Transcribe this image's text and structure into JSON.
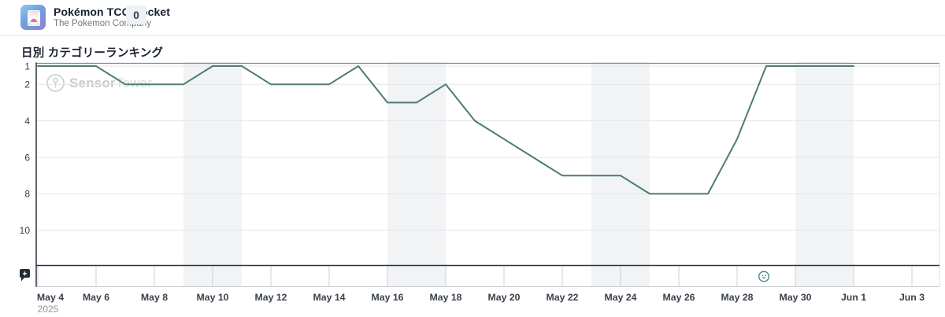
{
  "header": {
    "app_name": "Pokémon TCG Pocket",
    "company": "The Pokemon Company",
    "badge_count": "0",
    "app_icon": "pokemon-tcg-pocket-app-icon"
  },
  "section": {
    "title": "日別 カテゴリーランキング"
  },
  "watermark": {
    "icon": "sensor-tower-logo-icon",
    "bold_text": "Sensor",
    "light_text": "Tower"
  },
  "controls": {
    "annotation_bubble_icon": "add-annotation-bubble-icon",
    "event_marker_icon": "app-event-marker-icon",
    "event_marker_date": "May 29"
  },
  "colors": {
    "line": "#4e7b70",
    "axis_dark": "#28343e",
    "top_border": "#7a8c96",
    "gridline": "#e3e5e8",
    "weekend_band": "#f1f3f5",
    "tick": "#cbd0d4",
    "x_label": "#3a424d",
    "y_label": "#343e4a",
    "year_label": "#8d959e",
    "event_marker": "#3a8376",
    "bubble_icon": "#232f3c",
    "strip_bottom": "#c6cbd0",
    "right_border": "#d9dcdf"
  },
  "chart_data": {
    "type": "line",
    "title": "日別 カテゴリーランキング",
    "x": [
      "May 4",
      "May 5",
      "May 6",
      "May 7",
      "May 8",
      "May 9",
      "May 10",
      "May 11",
      "May 12",
      "May 13",
      "May 14",
      "May 15",
      "May 16",
      "May 17",
      "May 18",
      "May 19",
      "May 20",
      "May 21",
      "May 22",
      "May 23",
      "May 24",
      "May 25",
      "May 26",
      "May 27",
      "May 28",
      "May 29",
      "May 30",
      "May 31",
      "Jun 1",
      "Jun 2",
      "Jun 3"
    ],
    "series": [
      {
        "name": "Daily category ranking",
        "values": [
          1,
          1,
          1,
          2,
          2,
          2,
          1,
          1,
          2,
          2,
          2,
          1,
          3,
          3,
          2,
          4,
          5,
          6,
          7,
          7,
          7,
          8,
          8,
          8,
          5,
          1,
          1,
          1,
          1
        ],
        "note": "data ends at Jun 1; ranks are inverted (1 = best, at top)"
      }
    ],
    "xlabel": "",
    "ylabel": "",
    "x_tick_indices": [
      0,
      2,
      4,
      6,
      8,
      10,
      12,
      14,
      16,
      18,
      20,
      22,
      24,
      26,
      28,
      30
    ],
    "x_tick_labels": [
      "May 4",
      "May 6",
      "May 8",
      "May 10",
      "May 12",
      "May 14",
      "May 16",
      "May 18",
      "May 20",
      "May 22",
      "May 24",
      "May 26",
      "May 28",
      "May 30",
      "Jun 1",
      "Jun 3"
    ],
    "year_label": "2025",
    "y_ticks": [
      1,
      2,
      4,
      6,
      8,
      10
    ],
    "y_inverted": true,
    "ylim": [
      1,
      12
    ],
    "grid": true,
    "legend_position": "none",
    "weekend_band_index_ranges": [
      [
        5,
        7
      ],
      [
        12,
        14
      ],
      [
        19,
        21
      ],
      [
        26,
        28
      ]
    ],
    "event_marker_index": 25
  }
}
